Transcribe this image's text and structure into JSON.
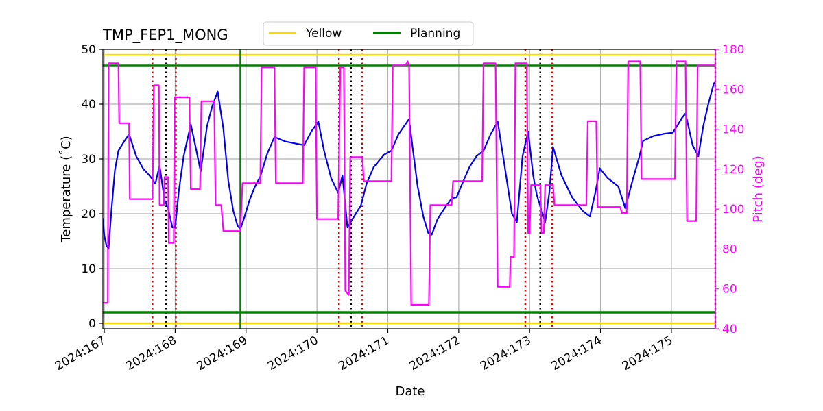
{
  "chart_data": {
    "type": "line",
    "title": "TMP_FEP1_MONG",
    "xlabel": "Date",
    "ylabel": "Temperature ($^\\circ$C)",
    "ylabel_display": "Temperature (˚C)",
    "y2label": "Pitch (deg)",
    "xlim": [
      166.98,
      175.62
    ],
    "ylim": [
      -1,
      50
    ],
    "y2lim": [
      40,
      180
    ],
    "xticks": [
      {
        "value": 167,
        "label": "2024:167"
      },
      {
        "value": 168,
        "label": "2024:168"
      },
      {
        "value": 169,
        "label": "2024:169"
      },
      {
        "value": 170,
        "label": "2024:170"
      },
      {
        "value": 171,
        "label": "2024:171"
      },
      {
        "value": 172,
        "label": "2024:172"
      },
      {
        "value": 173,
        "label": "2024:173"
      },
      {
        "value": 174,
        "label": "2024:174"
      },
      {
        "value": 175,
        "label": "2024:175"
      }
    ],
    "yticks": [
      0,
      10,
      20,
      30,
      40,
      50
    ],
    "y2ticks": [
      40,
      60,
      80,
      100,
      120,
      140,
      160,
      180
    ],
    "grid": true,
    "legend_placement": "top-center, above plot",
    "colors": {
      "temperature": "#0000ee",
      "pitch": "#ff00ff",
      "yellow": "#ffd700",
      "planning": "#008000",
      "red_marker": "#dd0000",
      "black_marker": "#000000"
    },
    "limits": [
      {
        "name": "Yellow",
        "values": [
          49,
          0
        ]
      },
      {
        "name": "Planning",
        "values": [
          47,
          2
        ]
      }
    ],
    "planning_vertical_x": 168.92,
    "red_dotted_x": [
      167.68,
      168.01,
      170.31,
      170.64,
      172.94,
      173.32,
      175.62
    ],
    "black_dotted_x": [
      167.87,
      170.48,
      173.15
    ],
    "series": [
      {
        "axis": "left",
        "points": [
          [
            166.98,
            19.2
          ],
          [
            167.0,
            16.0
          ],
          [
            167.03,
            14.2
          ],
          [
            167.06,
            13.6
          ],
          [
            167.1,
            20.5
          ],
          [
            167.15,
            28.0
          ],
          [
            167.2,
            31.5
          ],
          [
            167.28,
            33.2
          ],
          [
            167.35,
            34.5
          ],
          [
            167.45,
            30.5
          ],
          [
            167.55,
            28.2
          ],
          [
            167.65,
            26.8
          ],
          [
            167.72,
            25.5
          ],
          [
            167.78,
            28.8
          ],
          [
            167.85,
            22.5
          ],
          [
            167.9,
            21.0
          ],
          [
            167.96,
            17.5
          ],
          [
            168.0,
            17.5
          ],
          [
            168.05,
            24.0
          ],
          [
            168.12,
            30.5
          ],
          [
            168.22,
            36.3
          ],
          [
            168.3,
            31.5
          ],
          [
            168.36,
            27.7
          ],
          [
            168.45,
            36.0
          ],
          [
            168.52,
            39.5
          ],
          [
            168.6,
            42.3
          ],
          [
            168.68,
            35.5
          ],
          [
            168.75,
            26.0
          ],
          [
            168.82,
            20.5
          ],
          [
            168.88,
            17.8
          ],
          [
            168.92,
            17.2
          ],
          [
            168.98,
            19.5
          ],
          [
            169.05,
            22.5
          ],
          [
            169.12,
            24.8
          ],
          [
            169.2,
            26.8
          ],
          [
            169.3,
            31.0
          ],
          [
            169.4,
            34.0
          ],
          [
            169.55,
            33.2
          ],
          [
            169.7,
            32.8
          ],
          [
            169.82,
            32.5
          ],
          [
            169.92,
            35.0
          ],
          [
            170.02,
            36.8
          ],
          [
            170.1,
            31.5
          ],
          [
            170.2,
            26.5
          ],
          [
            170.3,
            23.8
          ],
          [
            170.36,
            27.0
          ],
          [
            170.43,
            17.5
          ],
          [
            170.5,
            19.0
          ],
          [
            170.62,
            21.5
          ],
          [
            170.7,
            25.5
          ],
          [
            170.8,
            28.5
          ],
          [
            170.95,
            30.8
          ],
          [
            171.05,
            31.5
          ],
          [
            171.15,
            34.5
          ],
          [
            171.3,
            37.3
          ],
          [
            171.35,
            32.0
          ],
          [
            171.42,
            25.0
          ],
          [
            171.5,
            19.5
          ],
          [
            171.57,
            16.5
          ],
          [
            171.62,
            16.2
          ],
          [
            171.7,
            19.0
          ],
          [
            171.8,
            21.0
          ],
          [
            171.9,
            22.8
          ],
          [
            171.97,
            23.0
          ],
          [
            172.05,
            25.5
          ],
          [
            172.15,
            28.5
          ],
          [
            172.25,
            30.5
          ],
          [
            172.35,
            31.5
          ],
          [
            172.45,
            34.5
          ],
          [
            172.55,
            36.8
          ],
          [
            172.62,
            31.0
          ],
          [
            172.68,
            26.0
          ],
          [
            172.75,
            20.0
          ],
          [
            172.82,
            18.5
          ],
          [
            172.9,
            30.5
          ],
          [
            172.98,
            35.0
          ],
          [
            173.05,
            27.0
          ],
          [
            173.1,
            23.5
          ],
          [
            173.16,
            21.0
          ],
          [
            173.22,
            18.5
          ],
          [
            173.28,
            24.0
          ],
          [
            173.33,
            32.2
          ],
          [
            173.45,
            27.0
          ],
          [
            173.6,
            23.0
          ],
          [
            173.75,
            20.5
          ],
          [
            173.85,
            19.5
          ],
          [
            173.93,
            24.0
          ],
          [
            173.99,
            28.3
          ],
          [
            174.1,
            26.5
          ],
          [
            174.25,
            25.0
          ],
          [
            174.35,
            21.0
          ],
          [
            174.45,
            26.0
          ],
          [
            174.55,
            30.5
          ],
          [
            174.6,
            33.3
          ],
          [
            174.75,
            34.2
          ],
          [
            174.9,
            34.6
          ],
          [
            175.02,
            34.8
          ],
          [
            175.08,
            36.0
          ],
          [
            175.15,
            37.5
          ],
          [
            175.2,
            38.3
          ],
          [
            175.3,
            32.5
          ],
          [
            175.38,
            30.5
          ],
          [
            175.45,
            36.0
          ],
          [
            175.52,
            40.0
          ],
          [
            175.6,
            43.8
          ],
          [
            175.62,
            44.0
          ]
        ]
      },
      {
        "axis": "right",
        "points": [
          [
            166.98,
            53
          ],
          [
            167.05,
            53
          ],
          [
            167.06,
            173
          ],
          [
            167.2,
            173
          ],
          [
            167.21,
            143
          ],
          [
            167.35,
            143
          ],
          [
            167.36,
            105
          ],
          [
            167.68,
            105
          ],
          [
            167.7,
            162
          ],
          [
            167.77,
            162
          ],
          [
            167.78,
            102
          ],
          [
            167.84,
            102
          ],
          [
            167.85,
            116
          ],
          [
            167.9,
            116
          ],
          [
            167.91,
            83
          ],
          [
            167.98,
            83
          ],
          [
            167.99,
            156
          ],
          [
            168.2,
            156
          ],
          [
            168.22,
            110
          ],
          [
            168.35,
            110
          ],
          [
            168.37,
            154
          ],
          [
            168.55,
            154
          ],
          [
            168.57,
            102
          ],
          [
            168.65,
            102
          ],
          [
            168.68,
            89
          ],
          [
            168.92,
            89
          ],
          [
            168.95,
            113
          ],
          [
            169.2,
            113
          ],
          [
            169.22,
            171
          ],
          [
            169.4,
            171
          ],
          [
            169.42,
            113
          ],
          [
            169.8,
            113
          ],
          [
            169.82,
            171
          ],
          [
            169.98,
            171
          ],
          [
            170.0,
            95
          ],
          [
            170.3,
            95
          ],
          [
            170.33,
            171
          ],
          [
            170.38,
            171
          ],
          [
            170.4,
            59
          ],
          [
            170.45,
            57
          ],
          [
            170.47,
            126
          ],
          [
            170.64,
            126
          ],
          [
            170.66,
            114
          ],
          [
            171.05,
            114
          ],
          [
            171.07,
            172
          ],
          [
            171.25,
            172
          ],
          [
            171.28,
            174
          ],
          [
            171.3,
            172
          ],
          [
            171.33,
            52
          ],
          [
            171.58,
            52
          ],
          [
            171.6,
            102
          ],
          [
            171.9,
            102
          ],
          [
            171.92,
            114
          ],
          [
            172.33,
            114
          ],
          [
            172.35,
            173
          ],
          [
            172.52,
            173
          ],
          [
            172.55,
            61
          ],
          [
            172.72,
            61
          ],
          [
            172.73,
            76
          ],
          [
            172.78,
            76
          ],
          [
            172.8,
            173
          ],
          [
            172.96,
            173
          ],
          [
            172.98,
            88
          ],
          [
            173.0,
            88
          ],
          [
            173.02,
            112
          ],
          [
            173.15,
            112
          ],
          [
            173.17,
            88
          ],
          [
            173.2,
            88
          ],
          [
            173.22,
            112
          ],
          [
            173.33,
            112
          ],
          [
            173.35,
            102
          ],
          [
            173.8,
            102
          ],
          [
            173.82,
            144
          ],
          [
            173.94,
            144
          ],
          [
            173.96,
            101
          ],
          [
            174.28,
            101
          ],
          [
            174.3,
            98
          ],
          [
            174.37,
            98
          ],
          [
            174.39,
            174
          ],
          [
            174.56,
            174
          ],
          [
            174.58,
            115
          ],
          [
            175.05,
            115
          ],
          [
            175.07,
            174
          ],
          [
            175.2,
            174
          ],
          [
            175.22,
            94
          ],
          [
            175.35,
            94
          ],
          [
            175.37,
            172
          ],
          [
            175.62,
            172
          ]
        ]
      }
    ]
  }
}
